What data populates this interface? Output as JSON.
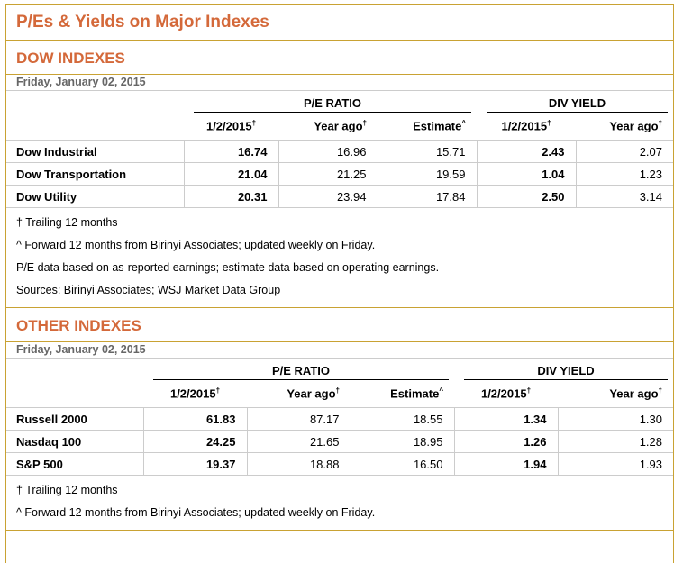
{
  "title": "P/Es & Yields on Major Indexes",
  "sections": [
    {
      "name": "DOW INDEXES",
      "date": "Friday, January 02, 2015",
      "group1": "P/E RATIO",
      "group2": "DIV YIELD",
      "cols": [
        "1/2/2015",
        "Year ago",
        "Estimate",
        "1/2/2015",
        "Year ago"
      ],
      "marks": [
        "†",
        "†",
        "^",
        "†",
        "†"
      ],
      "rows": [
        {
          "name": "Dow Industrial",
          "v": [
            "16.74",
            "16.96",
            "15.71",
            "2.43",
            "2.07"
          ]
        },
        {
          "name": "Dow Transportation",
          "v": [
            "21.04",
            "21.25",
            "19.59",
            "1.04",
            "1.23"
          ]
        },
        {
          "name": "Dow Utility",
          "v": [
            "20.31",
            "23.94",
            "17.84",
            "2.50",
            "3.14"
          ]
        }
      ],
      "notes": [
        "† Trailing 12 months",
        "^ Forward 12 months from Birinyi Associates; updated weekly on Friday.",
        "P/E data based on as-reported earnings; estimate data based on operating earnings.",
        "Sources: Birinyi Associates; WSJ Market Data Group"
      ]
    },
    {
      "name": "OTHER INDEXES",
      "date": "Friday, January 02, 2015",
      "group1": "P/E RATIO",
      "group2": "DIV YIELD",
      "cols": [
        "1/2/2015",
        "Year ago",
        "Estimate",
        "1/2/2015",
        "Year ago"
      ],
      "marks": [
        "†",
        "†",
        "^",
        "†",
        "†"
      ],
      "rows": [
        {
          "name": "Russell 2000",
          "v": [
            "61.83",
            "87.17",
            "18.55",
            "1.34",
            "1.30"
          ]
        },
        {
          "name": "Nasdaq 100",
          "v": [
            "24.25",
            "21.65",
            "18.95",
            "1.26",
            "1.28"
          ]
        },
        {
          "name": "S&P 500",
          "v": [
            "19.37",
            "18.88",
            "16.50",
            "1.94",
            "1.93"
          ]
        }
      ],
      "notes": [
        "† Trailing 12 months",
        "^ Forward 12 months from Birinyi Associates; updated weekly on Friday."
      ]
    }
  ]
}
